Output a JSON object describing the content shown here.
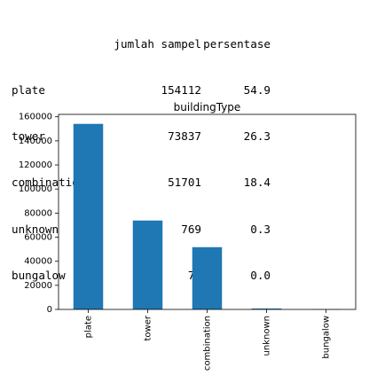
{
  "table": {
    "columns": [
      "jumlah sampel",
      "persentase"
    ],
    "rows": [
      {
        "label": "plate",
        "count": "154112",
        "pct": "54.9"
      },
      {
        "label": "tower",
        "count": "73837",
        "pct": "26.3"
      },
      {
        "label": "combination",
        "count": "51701",
        "pct": "18.4"
      },
      {
        "label": "unknown",
        "count": "769",
        "pct": "0.3"
      },
      {
        "label": "bungalow",
        "count": "79",
        "pct": "0.0"
      }
    ]
  },
  "chart_data": {
    "type": "bar",
    "title": "buildingType",
    "xlabel": "",
    "ylabel": "",
    "categories": [
      "plate",
      "tower",
      "combination",
      "unknown",
      "bungalow"
    ],
    "values": [
      154112,
      73837,
      51701,
      769,
      79
    ],
    "ylim": [
      0,
      162000
    ],
    "yticks": [
      0,
      20000,
      40000,
      60000,
      80000,
      100000,
      120000,
      140000,
      160000
    ],
    "ytick_labels": [
      "0",
      "20000",
      "40000",
      "60000",
      "80000",
      "100000",
      "120000",
      "140000",
      "160000"
    ],
    "bar_color": "#1f77b4",
    "grid": false,
    "legend": "none"
  }
}
